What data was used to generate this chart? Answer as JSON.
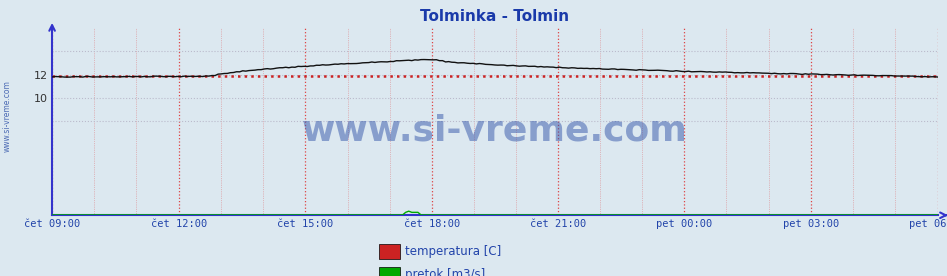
{
  "title": "Tolminka - Tolmin",
  "title_color": "#1a3aaa",
  "title_fontsize": 11,
  "bg_color": "#dce8f0",
  "plot_bg_color": "#dce8f0",
  "axis_color": "#3333cc",
  "x_tick_labels": [
    "čet 09:00",
    "čet 12:00",
    "čet 15:00",
    "čet 18:00",
    "čet 21:00",
    "pet 00:00",
    "pet 03:00",
    "pet 06:00"
  ],
  "x_tick_positions": [
    0.0,
    0.143,
    0.286,
    0.429,
    0.571,
    0.714,
    0.857,
    1.0
  ],
  "ylim_data": [
    9.0,
    14.0
  ],
  "ylim_full": [
    0.0,
    16.0
  ],
  "yticks": [
    10,
    12
  ],
  "grid_color_v": "#dd4444",
  "grid_color_h": "#bbbbcc",
  "temp_color": "#111111",
  "avg_line_color": "#cc2222",
  "avg_line_value": 11.85,
  "pretok_color": "#00aa00",
  "watermark_text": "www.si-vreme.com",
  "watermark_color": "#3355aa",
  "watermark_fontsize": 26,
  "side_text": "www.si-vreme.com",
  "side_text_color": "#3355aa",
  "legend_labels": [
    "temperatura [C]",
    "pretok [m3/s]"
  ],
  "legend_colors": [
    "#cc2222",
    "#00aa00"
  ],
  "n_points": 289
}
